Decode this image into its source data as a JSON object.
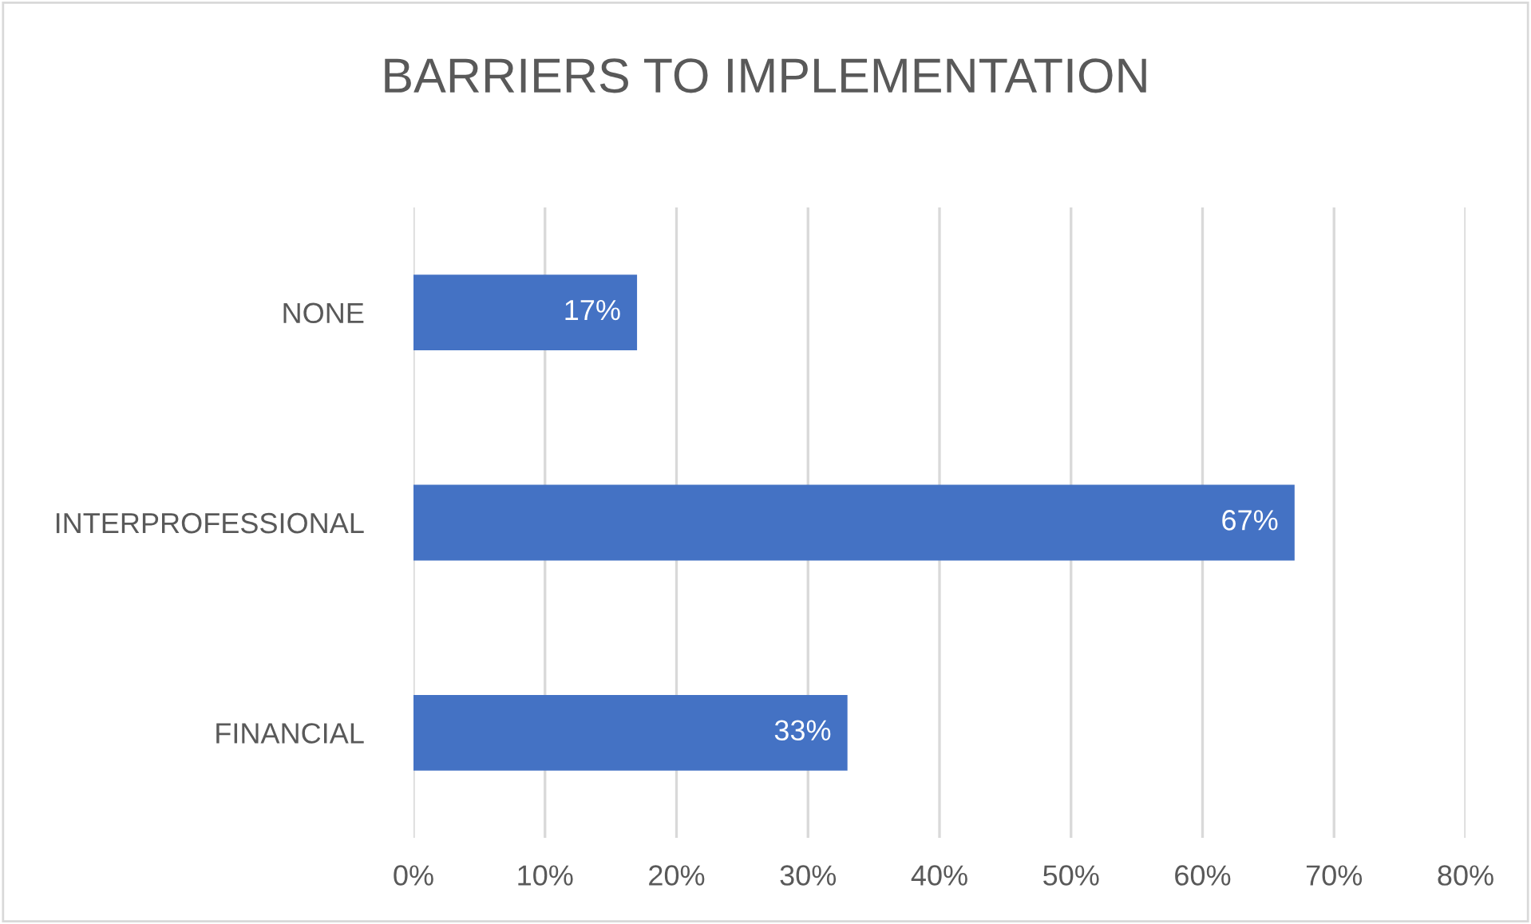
{
  "chart_data": {
    "type": "bar",
    "orientation": "horizontal",
    "title": "BARRIERS TO IMPLEMENTATION",
    "categories": [
      "NONE",
      "INTERPROFESSIONAL",
      "FINANCIAL"
    ],
    "values": [
      17,
      67,
      33
    ],
    "value_labels": [
      "17%",
      "67%",
      "33%"
    ],
    "color": "#4472c4",
    "xlim": [
      0,
      80
    ],
    "xticks": [
      {
        "value": 0,
        "label": "0%"
      },
      {
        "value": 10,
        "label": "10%"
      },
      {
        "value": 20,
        "label": "20%"
      },
      {
        "value": 30,
        "label": "30%"
      },
      {
        "value": 40,
        "label": "40%"
      },
      {
        "value": 50,
        "label": "50%"
      },
      {
        "value": 60,
        "label": "60%"
      },
      {
        "value": 70,
        "label": "70%"
      },
      {
        "value": 80,
        "label": "80%"
      }
    ],
    "grid": "x",
    "legend": false
  }
}
